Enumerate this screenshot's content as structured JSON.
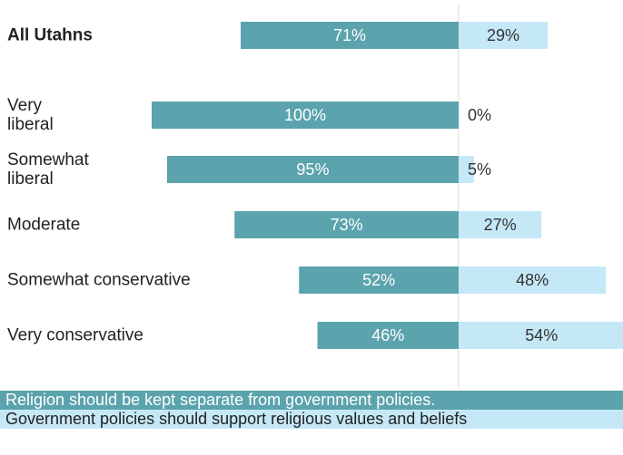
{
  "chart_data": {
    "type": "diverging_bar",
    "categories": [
      "All Utahns",
      "Very liberal",
      "Somewhat liberal",
      "Moderate",
      "Somewhat conservative",
      "Very conservative"
    ],
    "series": [
      {
        "name": "Religion should be kept separate from government policies.",
        "color": "#5ba3ad",
        "values": [
          71,
          100,
          95,
          73,
          52,
          46
        ],
        "value_labels": [
          "71%",
          "100%",
          "95%",
          "73%",
          "52%",
          "46%"
        ]
      },
      {
        "name": "Government policies should support religious values and beliefs",
        "color": "#c5e8f7",
        "values": [
          29,
          0,
          5,
          27,
          48,
          54
        ],
        "value_labels": [
          "29%",
          "0%",
          "5%",
          "27%",
          "48%",
          "54%"
        ]
      }
    ]
  }
}
